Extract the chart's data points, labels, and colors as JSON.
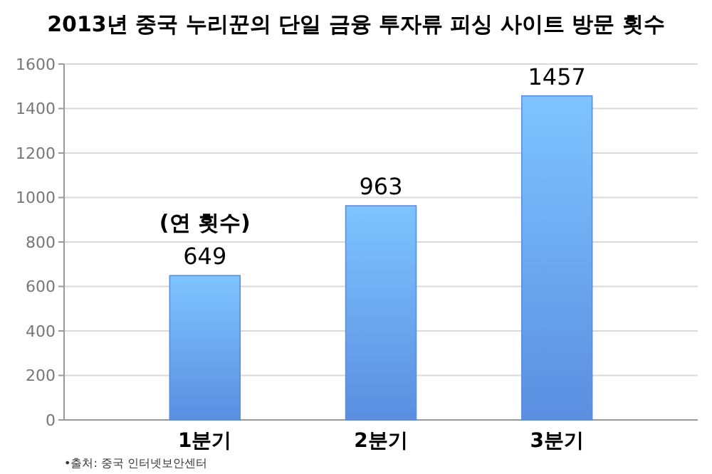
{
  "chart_data": {
    "type": "bar",
    "title": "2013년 중국 누리꾼의 단일 금융 투자류 피싱 사이트 방문 횟수",
    "categories": [
      "1분기",
      "2분기",
      "3분기"
    ],
    "values": [
      649,
      963,
      1457
    ],
    "color": "#5b8ee0",
    "ylim": [
      0,
      1600
    ],
    "yticks": [
      0,
      200,
      400,
      600,
      800,
      1000,
      1200,
      1400,
      1600
    ],
    "grid": "y",
    "data_labels": true,
    "annotations": [
      {
        "text": "(연 횟수)",
        "x": "1분기",
        "y": 649
      },
      "•출처: 중국 인터넷보안센터"
    ]
  }
}
